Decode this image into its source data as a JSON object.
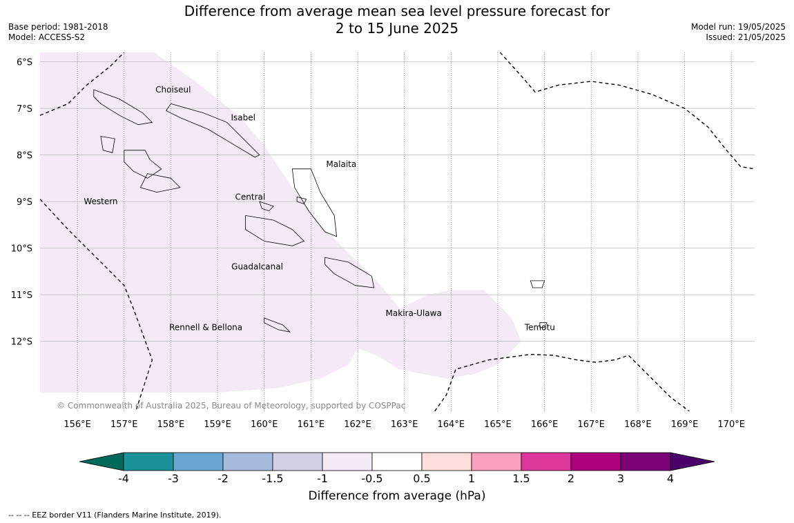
{
  "header": {
    "title_line1": "Difference from average mean sea level pressure forecast for",
    "title_line2": "2 to 15 June 2025",
    "base_period": "Base period: 1981-2018",
    "model": "Model: ACCESS-S2",
    "model_run": "Model run: 19/05/2025",
    "issued": "Issued: 21/05/2025"
  },
  "map": {
    "lon_range": [
      155.2,
      170.5
    ],
    "lat_range": [
      -13.5,
      -5.8
    ],
    "lon_ticks": [
      {
        "value": 156,
        "label": "156°E"
      },
      {
        "value": 157,
        "label": "157°E"
      },
      {
        "value": 158,
        "label": "158°E"
      },
      {
        "value": 159,
        "label": "159°E"
      },
      {
        "value": 160,
        "label": "160°E"
      },
      {
        "value": 161,
        "label": "161°E"
      },
      {
        "value": 162,
        "label": "162°E"
      },
      {
        "value": 163,
        "label": "163°E"
      },
      {
        "value": 164,
        "label": "164°E"
      },
      {
        "value": 165,
        "label": "165°E"
      },
      {
        "value": 166,
        "label": "166°E"
      },
      {
        "value": 167,
        "label": "167°E"
      },
      {
        "value": 168,
        "label": "168°E"
      },
      {
        "value": 169,
        "label": "169°E"
      },
      {
        "value": 170,
        "label": "170°E"
      }
    ],
    "lat_ticks": [
      {
        "value": -6,
        "label": "6°S"
      },
      {
        "value": -7,
        "label": "7°S"
      },
      {
        "value": -8,
        "label": "8°S"
      },
      {
        "value": -9,
        "label": "9°S"
      },
      {
        "value": -10,
        "label": "10°S"
      },
      {
        "value": -11,
        "label": "11°S"
      },
      {
        "value": -12,
        "label": "12°S"
      }
    ],
    "province_labels": [
      {
        "name": "Choiseul",
        "lon": 158.05,
        "lat": -6.6
      },
      {
        "name": "Isabel",
        "lon": 159.55,
        "lat": -7.2
      },
      {
        "name": "Malaita",
        "lon": 161.65,
        "lat": -8.2
      },
      {
        "name": "Western",
        "lon": 156.5,
        "lat": -9.0
      },
      {
        "name": "Central",
        "lon": 159.7,
        "lat": -8.9
      },
      {
        "name": "Guadalcanal",
        "lon": 159.85,
        "lat": -10.4
      },
      {
        "name": "Makira-Ulawa",
        "lon": 163.2,
        "lat": -11.4
      },
      {
        "name": "Rennell & Bellona",
        "lon": 158.75,
        "lat": -11.7
      },
      {
        "name": "Temotu",
        "lon": 165.9,
        "lat": -11.7
      }
    ],
    "anomaly_region": {
      "category": "-1 to -0.5",
      "color": "#f3eaf5",
      "outline": [
        [
          155.2,
          -5.8
        ],
        [
          157.5,
          -5.7
        ],
        [
          158.5,
          -6.4
        ],
        [
          159.5,
          -7.2
        ],
        [
          160.0,
          -7.8
        ],
        [
          160.6,
          -8.7
        ],
        [
          161.3,
          -9.6
        ],
        [
          162.1,
          -10.4
        ],
        [
          162.5,
          -10.8
        ],
        [
          162.9,
          -11.3
        ],
        [
          163.5,
          -11.0
        ],
        [
          164.0,
          -10.9
        ],
        [
          164.7,
          -10.9
        ],
        [
          165.3,
          -11.5
        ],
        [
          165.5,
          -12.0
        ],
        [
          165.0,
          -12.5
        ],
        [
          164.5,
          -12.7
        ],
        [
          163.9,
          -12.8
        ],
        [
          162.9,
          -12.6
        ],
        [
          162.4,
          -12.3
        ],
        [
          162.0,
          -12.15
        ],
        [
          161.8,
          -12.5
        ],
        [
          161.2,
          -12.8
        ],
        [
          160.3,
          -13.0
        ],
        [
          159.0,
          -13.1
        ],
        [
          157.5,
          -13.1
        ],
        [
          155.2,
          -13.1
        ]
      ]
    },
    "eez_lines": [
      [
        [
          155.2,
          -7.15
        ],
        [
          155.8,
          -6.9
        ],
        [
          156.2,
          -6.5
        ],
        [
          156.7,
          -6.1
        ],
        [
          157.0,
          -5.8
        ]
      ],
      [
        [
          155.2,
          -8.95
        ],
        [
          155.8,
          -9.6
        ],
        [
          156.4,
          -10.2
        ],
        [
          157.0,
          -10.8
        ],
        [
          157.2,
          -11.3
        ],
        [
          157.6,
          -12.4
        ],
        [
          157.25,
          -13.5
        ]
      ],
      [
        [
          165.05,
          -5.8
        ],
        [
          165.5,
          -6.3
        ],
        [
          165.8,
          -6.65
        ],
        [
          166.3,
          -6.5
        ],
        [
          167.0,
          -6.42
        ],
        [
          167.6,
          -6.5
        ],
        [
          168.3,
          -6.7
        ],
        [
          169.0,
          -7.0
        ],
        [
          169.5,
          -7.4
        ],
        [
          169.9,
          -7.9
        ],
        [
          170.2,
          -8.25
        ],
        [
          170.5,
          -8.3
        ]
      ],
      [
        [
          163.65,
          -13.5
        ],
        [
          163.9,
          -13.15
        ],
        [
          164.1,
          -12.6
        ],
        [
          164.8,
          -12.4
        ],
        [
          165.7,
          -12.28
        ],
        [
          166.2,
          -12.3
        ],
        [
          166.7,
          -12.4
        ],
        [
          167.1,
          -12.45
        ],
        [
          167.5,
          -12.4
        ],
        [
          167.8,
          -12.3
        ],
        [
          168.2,
          -12.7
        ],
        [
          168.7,
          -13.2
        ],
        [
          169.1,
          -13.5
        ]
      ]
    ],
    "islands": [
      [
        [
          158.0,
          -6.9
        ],
        [
          158.7,
          -7.1
        ],
        [
          159.2,
          -7.3
        ],
        [
          159.6,
          -7.7
        ],
        [
          159.9,
          -8.0
        ],
        [
          159.8,
          -8.05
        ],
        [
          159.3,
          -7.75
        ],
        [
          158.8,
          -7.45
        ],
        [
          158.2,
          -7.2
        ],
        [
          157.9,
          -7.05
        ]
      ],
      [
        [
          156.35,
          -6.6
        ],
        [
          156.9,
          -6.8
        ],
        [
          157.4,
          -7.1
        ],
        [
          157.6,
          -7.3
        ],
        [
          157.3,
          -7.35
        ],
        [
          156.9,
          -7.15
        ],
        [
          156.5,
          -6.9
        ],
        [
          156.35,
          -6.75
        ]
      ],
      [
        [
          157.0,
          -7.9
        ],
        [
          157.45,
          -7.9
        ],
        [
          157.55,
          -8.1
        ],
        [
          157.8,
          -8.3
        ],
        [
          157.5,
          -8.5
        ],
        [
          157.2,
          -8.35
        ],
        [
          157.0,
          -8.15
        ]
      ],
      [
        [
          157.5,
          -8.4
        ],
        [
          158.0,
          -8.5
        ],
        [
          158.2,
          -8.7
        ],
        [
          157.7,
          -8.8
        ],
        [
          157.35,
          -8.7
        ]
      ],
      [
        [
          156.5,
          -7.6
        ],
        [
          156.8,
          -7.65
        ],
        [
          156.75,
          -7.95
        ],
        [
          156.55,
          -7.9
        ]
      ],
      [
        [
          160.6,
          -8.3
        ],
        [
          161.0,
          -8.3
        ],
        [
          161.2,
          -8.8
        ],
        [
          161.5,
          -9.3
        ],
        [
          161.55,
          -9.75
        ],
        [
          161.3,
          -9.65
        ],
        [
          160.95,
          -9.2
        ],
        [
          160.65,
          -8.7
        ]
      ],
      [
        [
          159.6,
          -9.3
        ],
        [
          160.2,
          -9.4
        ],
        [
          160.6,
          -9.6
        ],
        [
          160.85,
          -9.85
        ],
        [
          160.6,
          -9.95
        ],
        [
          160.0,
          -9.85
        ],
        [
          159.6,
          -9.6
        ]
      ],
      [
        [
          161.3,
          -10.2
        ],
        [
          161.8,
          -10.3
        ],
        [
          162.3,
          -10.6
        ],
        [
          162.35,
          -10.85
        ],
        [
          161.95,
          -10.8
        ],
        [
          161.5,
          -10.55
        ],
        [
          161.3,
          -10.35
        ]
      ],
      [
        [
          159.9,
          -9.0
        ],
        [
          160.2,
          -9.1
        ],
        [
          160.1,
          -9.2
        ],
        [
          159.95,
          -9.15
        ]
      ],
      [
        [
          160.0,
          -11.5
        ],
        [
          160.4,
          -11.65
        ],
        [
          160.55,
          -11.8
        ],
        [
          160.3,
          -11.75
        ],
        [
          160.0,
          -11.6
        ]
      ],
      [
        [
          165.7,
          -10.7
        ],
        [
          166.0,
          -10.7
        ],
        [
          165.95,
          -10.85
        ],
        [
          165.75,
          -10.85
        ]
      ],
      [
        [
          165.9,
          -11.6
        ],
        [
          166.05,
          -11.6
        ],
        [
          166.0,
          -11.7
        ],
        [
          165.9,
          -11.7
        ]
      ],
      [
        [
          160.7,
          -8.9
        ],
        [
          160.9,
          -8.95
        ],
        [
          160.85,
          -9.05
        ],
        [
          160.7,
          -9.0
        ]
      ]
    ]
  },
  "attribution": "© Commonwealth of Australia 2025, Bureau of Meteorology, supported by COSPPac",
  "colorbar": {
    "label": "Difference from average (hPa)",
    "tick_labels": [
      "-4",
      "-3",
      "-2",
      "-1.5",
      "-1",
      "-0.5",
      "0.5",
      "1",
      "1.5",
      "2",
      "3",
      "4"
    ],
    "colors": [
      "#1a9298",
      "#68a8d0",
      "#a6bbdb",
      "#cfd0e3",
      "#f3eaf5",
      "#ffffff",
      "#fddedd",
      "#f9a0bd",
      "#dc369a",
      "#ae0180",
      "#7b0177"
    ],
    "extend_low_color": "#00695a",
    "extend_high_color": "#4a006a"
  },
  "footer": "--  --  -- EEZ border V11 (Flanders Marine Institute, 2019)."
}
